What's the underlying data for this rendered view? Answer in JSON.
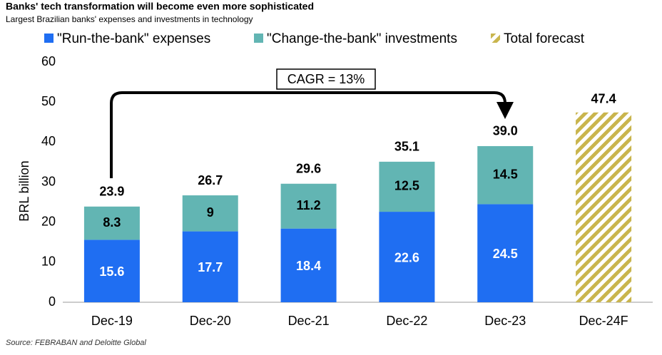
{
  "chart_data": {
    "type": "bar",
    "title": "Banks' tech transformation will become even more sophisticated",
    "subtitle": "Largest Brazilian banks' expenses and investments in technology",
    "y_label": "BRL billion",
    "source": "Source: FEBRABAN and Deloitte Global",
    "annotation": "CAGR = 13%",
    "categories": [
      "Dec-19",
      "Dec-20",
      "Dec-21",
      "Dec-22",
      "Dec-23",
      "Dec-24F"
    ],
    "stacked": true,
    "series": [
      {
        "name": "\"Run-the-bank\" expenses",
        "color": "#1f6ef2",
        "values": [
          15.6,
          17.7,
          18.4,
          22.6,
          24.5,
          null
        ]
      },
      {
        "name": "\"Change-the-bank\" investments",
        "color": "#62b5b3",
        "values": [
          8.3,
          9,
          11.2,
          12.5,
          14.5,
          null
        ]
      },
      {
        "name": "Total forecast",
        "color": "#c9b54d",
        "pattern": "hatch",
        "values": [
          null,
          null,
          null,
          null,
          null,
          47.4
        ]
      }
    ],
    "totals": {
      "values": [
        23.9,
        26.7,
        29.6,
        35.1,
        39,
        null
      ],
      "value_labels": [
        "23.9",
        "26.7",
        "29.6",
        "35.1",
        "39.0",
        null
      ]
    },
    "ylim": [
      0,
      60
    ],
    "yticks": [
      0,
      10,
      20,
      30,
      40,
      50,
      60
    ],
    "grid": false
  }
}
